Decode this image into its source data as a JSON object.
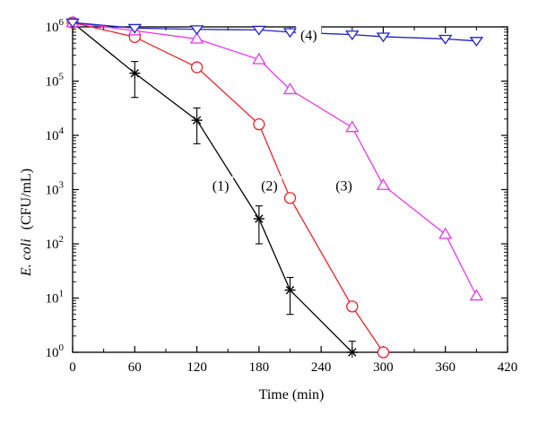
{
  "chart_data": {
    "type": "line",
    "xlabel": "Time (min)",
    "ylabel": {
      "italic": "E. coli",
      "normal": "(CFU/mL)"
    },
    "xlim": [
      0,
      420
    ],
    "ylim": [
      1,
      1000000
    ],
    "yscale": "log",
    "grid": false,
    "xticks": [
      0,
      60,
      120,
      180,
      240,
      300,
      360,
      420
    ],
    "xtick_labels": [
      "0",
      "60",
      "120",
      "180",
      "240",
      "300",
      "360",
      "420"
    ],
    "yticks": [
      1,
      10,
      100,
      1000,
      10000,
      100000,
      1000000
    ],
    "ytick_labels": [
      {
        "base": "10",
        "exp": "0"
      },
      {
        "base": "10",
        "exp": "1"
      },
      {
        "base": "10",
        "exp": "2"
      },
      {
        "base": "10",
        "exp": "3"
      },
      {
        "base": "10",
        "exp": "4"
      },
      {
        "base": "10",
        "exp": "5"
      },
      {
        "base": "10",
        "exp": "6"
      }
    ],
    "series": [
      {
        "label": "(1)",
        "color": "#000000",
        "marker": "asterisk",
        "x": [
          0,
          60,
          120,
          180,
          210,
          270
        ],
        "y": [
          1200000,
          140000,
          19000,
          290,
          14,
          1
        ],
        "yerr_low": [
          1000000,
          50000,
          7000,
          100,
          5,
          1
        ],
        "yerr_high": [
          1400000,
          230000,
          32000,
          500,
          24,
          1.6
        ]
      },
      {
        "label": "(2)",
        "color": "#e8232a",
        "marker": "circle",
        "x": [
          0,
          60,
          120,
          180,
          210,
          270,
          300
        ],
        "y": [
          1200000,
          650000,
          180000,
          16000,
          700,
          7,
          1
        ]
      },
      {
        "label": "(3)",
        "color": "#e838e8",
        "marker": "triangle-up",
        "x": [
          0,
          60,
          120,
          180,
          210,
          270,
          300,
          360,
          390
        ],
        "y": [
          1200000,
          850000,
          600000,
          250000,
          70000,
          14000,
          1200,
          150,
          11
        ]
      },
      {
        "label": "(4)",
        "color": "#1e22c8",
        "marker": "triangle-down",
        "x": [
          0,
          60,
          120,
          180,
          210,
          270,
          300,
          360,
          390
        ],
        "y": [
          1200000,
          950000,
          900000,
          880000,
          800000,
          720000,
          660000,
          600000,
          550000
        ]
      }
    ],
    "annotations": [
      {
        "text": "(1)",
        "x": 143,
        "y": 1200
      },
      {
        "text": "(2)",
        "x": 190,
        "y": 1200
      },
      {
        "text": "(3)",
        "x": 262,
        "y": 1200
      },
      {
        "text": "(4)",
        "x": 228,
        "y": 720000
      }
    ]
  }
}
